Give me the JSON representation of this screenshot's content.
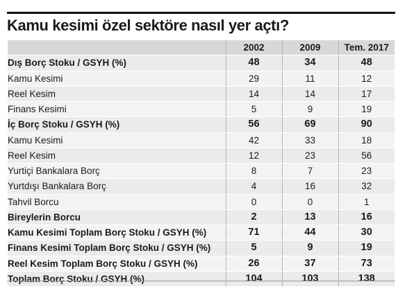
{
  "title": "Kamu kesimi özel sektöre nasıl yer açtı?",
  "columns": [
    "2002",
    "2009",
    "Tem. 2017"
  ],
  "rows": [
    {
      "label": "Dış Borç Stoku / GSYH (%)",
      "values": [
        "48",
        "34",
        "48"
      ],
      "bold": true,
      "indent": 0
    },
    {
      "label": "Kamu Kesimi",
      "values": [
        "29",
        "11",
        "12"
      ],
      "bold": false,
      "indent": 1
    },
    {
      "label": "Reel Kesim",
      "values": [
        "14",
        "14",
        "17"
      ],
      "bold": false,
      "indent": 1
    },
    {
      "label": "Finans Kesimi",
      "values": [
        "5",
        "9",
        "19"
      ],
      "bold": false,
      "indent": 1
    },
    {
      "label": "İç Borç Stoku / GSYH (%)",
      "values": [
        "56",
        "69",
        "90"
      ],
      "bold": true,
      "indent": 0
    },
    {
      "label": "Kamu Kesimi",
      "values": [
        "42",
        "33",
        "18"
      ],
      "bold": false,
      "indent": 1
    },
    {
      "label": "Reel Kesim",
      "values": [
        "12",
        "23",
        "56"
      ],
      "bold": false,
      "indent": 1
    },
    {
      "label": "Yurtiçi Bankalara Borç",
      "values": [
        "8",
        "7",
        "23"
      ],
      "bold": false,
      "indent": 2
    },
    {
      "label": "Yurtdışı Bankalara Borç",
      "values": [
        "4",
        "16",
        "32"
      ],
      "bold": false,
      "indent": 2
    },
    {
      "label": "Tahvil Borcu",
      "values": [
        "0",
        "0",
        "1"
      ],
      "bold": false,
      "indent": 2
    },
    {
      "label": "Bireylerin Borcu",
      "values": [
        "2",
        "13",
        "16"
      ],
      "bold": true,
      "indent": 1
    },
    {
      "label": "Kamu Kesimi Toplam Borç Stoku / GSYH (%)",
      "values": [
        "71",
        "44",
        "30"
      ],
      "bold": true,
      "indent": 0
    },
    {
      "label": "Finans Kesimi Toplam Borç Stoku / GSYH (%)",
      "values": [
        "5",
        "9",
        "19"
      ],
      "bold": true,
      "indent": 0
    },
    {
      "label": "Reel Kesim Toplam Borç Stoku / GSYH (%)",
      "values": [
        "26",
        "37",
        "73"
      ],
      "bold": true,
      "indent": 0
    },
    {
      "label": "Toplam Borç Stoku / GSYH (%)",
      "values": [
        "104",
        "103",
        "138"
      ],
      "bold": true,
      "indent": 0
    }
  ],
  "colors": {
    "header_bg": "#d9d8d8",
    "row_bg": "#eceaea",
    "row_alt_bg": "#f4f3f3",
    "rule": "#111111"
  }
}
